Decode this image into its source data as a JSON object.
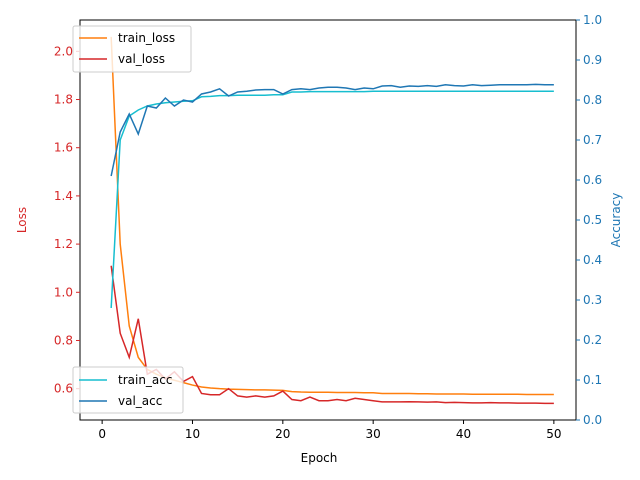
{
  "colors": {
    "train_loss": "#ff7f0e",
    "val_loss": "#d62728",
    "train_acc": "#17becf",
    "val_acc": "#1f77b4",
    "left_axis": "#d62728",
    "right_axis": "#1f77b4"
  },
  "chart_data": {
    "type": "line",
    "title": "",
    "xlabel": "Epoch",
    "ylabel_left": "Loss",
    "ylabel_right": "Accuracy",
    "xlim": [
      -2.45,
      52.45
    ],
    "ylim_left": [
      0.47,
      2.13
    ],
    "ylim_right": [
      0.0,
      1.0
    ],
    "x_ticks": [
      0,
      10,
      20,
      30,
      40,
      50
    ],
    "y_left_ticks": [
      0.6,
      0.8,
      1.0,
      1.2,
      1.4,
      1.6,
      1.8,
      2.0
    ],
    "y_right_ticks": [
      0.0,
      0.1,
      0.2,
      0.3,
      0.4,
      0.5,
      0.6,
      0.7,
      0.8,
      0.9,
      1.0
    ],
    "grid": false,
    "legend_loss_position": "upper-left",
    "legend_acc_position": "lower-left",
    "x": [
      1,
      2,
      3,
      4,
      5,
      6,
      7,
      8,
      9,
      10,
      11,
      12,
      13,
      14,
      15,
      16,
      17,
      18,
      19,
      20,
      21,
      22,
      23,
      24,
      25,
      26,
      27,
      28,
      29,
      30,
      31,
      32,
      33,
      34,
      35,
      36,
      37,
      38,
      39,
      40,
      41,
      42,
      43,
      44,
      45,
      46,
      47,
      48,
      49,
      50
    ],
    "loss_series": [
      {
        "name": "train_loss",
        "values": [
          2.06,
          1.2,
          0.86,
          0.73,
          0.68,
          0.66,
          0.645,
          0.635,
          0.625,
          0.615,
          0.607,
          0.603,
          0.6,
          0.598,
          0.597,
          0.596,
          0.595,
          0.595,
          0.594,
          0.593,
          0.588,
          0.586,
          0.585,
          0.585,
          0.585,
          0.584,
          0.584,
          0.584,
          0.583,
          0.583,
          0.58,
          0.58,
          0.58,
          0.58,
          0.579,
          0.579,
          0.578,
          0.578,
          0.578,
          0.578,
          0.577,
          0.577,
          0.577,
          0.577,
          0.577,
          0.577,
          0.576,
          0.576,
          0.576,
          0.576
        ]
      },
      {
        "name": "val_loss",
        "values": [
          1.11,
          0.83,
          0.73,
          0.89,
          0.66,
          0.68,
          0.64,
          0.67,
          0.63,
          0.65,
          0.58,
          0.575,
          0.575,
          0.6,
          0.57,
          0.565,
          0.57,
          0.565,
          0.57,
          0.59,
          0.555,
          0.55,
          0.565,
          0.55,
          0.55,
          0.555,
          0.55,
          0.56,
          0.555,
          0.55,
          0.545,
          0.545,
          0.545,
          0.546,
          0.545,
          0.544,
          0.545,
          0.542,
          0.543,
          0.542,
          0.541,
          0.541,
          0.542,
          0.541,
          0.541,
          0.54,
          0.54,
          0.54,
          0.539,
          0.539
        ]
      }
    ],
    "acc_series": [
      {
        "name": "train_acc",
        "values": [
          0.28,
          0.7,
          0.76,
          0.775,
          0.785,
          0.79,
          0.793,
          0.795,
          0.797,
          0.798,
          0.808,
          0.809,
          0.811,
          0.811,
          0.812,
          0.812,
          0.812,
          0.812,
          0.813,
          0.813,
          0.82,
          0.82,
          0.821,
          0.821,
          0.821,
          0.821,
          0.821,
          0.821,
          0.821,
          0.822,
          0.822,
          0.822,
          0.822,
          0.822,
          0.822,
          0.822,
          0.822,
          0.822,
          0.822,
          0.822,
          0.822,
          0.822,
          0.822,
          0.822,
          0.822,
          0.822,
          0.822,
          0.822,
          0.822,
          0.822
        ]
      },
      {
        "name": "val_acc",
        "values": [
          0.61,
          0.72,
          0.765,
          0.715,
          0.785,
          0.78,
          0.805,
          0.785,
          0.8,
          0.795,
          0.815,
          0.82,
          0.828,
          0.81,
          0.82,
          0.822,
          0.825,
          0.826,
          0.826,
          0.815,
          0.826,
          0.828,
          0.826,
          0.83,
          0.832,
          0.832,
          0.83,
          0.826,
          0.83,
          0.828,
          0.835,
          0.836,
          0.832,
          0.835,
          0.834,
          0.836,
          0.834,
          0.838,
          0.836,
          0.835,
          0.838,
          0.836,
          0.837,
          0.838,
          0.838,
          0.838,
          0.838,
          0.839,
          0.838,
          0.838
        ]
      }
    ]
  }
}
